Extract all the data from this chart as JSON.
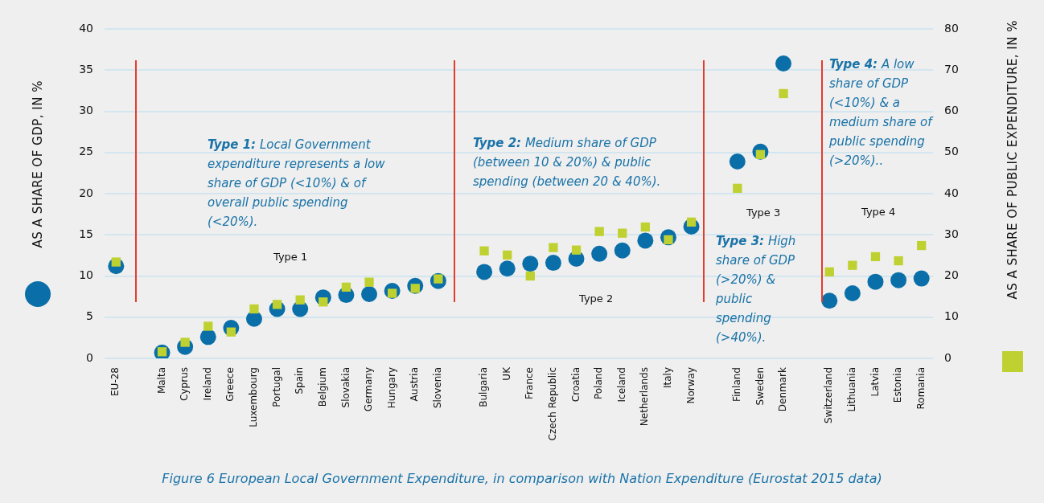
{
  "chart_data": {
    "type": "scatter",
    "categories": [
      "EU-28",
      null,
      "Malta",
      "Cyprus",
      "Ireland",
      "Greece",
      "Luxembourg",
      "Portugal",
      "Spain",
      "Belgium",
      "Slovakia",
      "Germany",
      "Hungary",
      "Austria",
      "Slovenia",
      null,
      "Bulgaria",
      "UK",
      "France",
      "Czech Republic",
      "Croatia",
      "Poland",
      "Iceland",
      "Netherlands",
      "Italy",
      "Norway",
      null,
      "Finland",
      "Sweden",
      "Denmark",
      null,
      "Switzerland",
      "Lithuania",
      "Latvia",
      "Estonia",
      "Romania"
    ],
    "series": [
      {
        "color": "#0a6fa8",
        "marker": "circle",
        "axis": "y",
        "values": [
          11.2,
          null,
          0.7,
          1.4,
          2.6,
          3.7,
          4.8,
          6.0,
          6.0,
          7.4,
          7.7,
          7.8,
          8.2,
          8.8,
          9.4,
          null,
          10.5,
          10.9,
          11.5,
          11.6,
          12.1,
          12.7,
          13.1,
          14.3,
          14.7,
          16.0,
          null,
          23.9,
          25.1,
          35.8,
          null,
          7.0,
          7.9,
          9.3,
          9.5,
          9.7
        ]
      },
      {
        "color": "#bfd131",
        "marker": "square",
        "axis": "y2",
        "values": [
          23.4,
          null,
          1.6,
          3.9,
          7.8,
          6.4,
          12.0,
          13.1,
          14.2,
          13.7,
          17.3,
          18.5,
          15.8,
          17.0,
          19.3,
          null,
          26.1,
          25.1,
          20.0,
          26.9,
          26.3,
          30.8,
          30.4,
          31.9,
          28.8,
          33.1,
          null,
          41.3,
          49.5,
          64.3,
          null,
          21.0,
          22.6,
          24.7,
          23.7,
          27.4
        ]
      }
    ],
    "ylabel": "AS A SHARE OF GDP, IN %",
    "y2label": "AS A SHARE OF PUBLIC EXPENDITURE, IN %",
    "ylim": [
      0,
      40
    ],
    "yticks": [
      0,
      5,
      10,
      15,
      20,
      25,
      30,
      35,
      40
    ],
    "y2lim": [
      0,
      80
    ],
    "y2ticks": [
      0,
      10,
      20,
      30,
      40,
      50,
      60,
      70,
      80
    ],
    "grid": "y",
    "legend": false,
    "annotations": [
      "Type 1: Local Government expenditure represents a low share of GDP (<10%) & of overall public spending (<20%).",
      "Type 1",
      "Type 2: Medium share of GDP (between 10 & 20%) & public spending (between 20 & 40%).",
      "Type 2",
      "Type 3",
      "Type 3: High share of GDP (>20%) & public spending (>40%).",
      "Type 4",
      "Type 4: A low share of GDP (<10%) & a medium share of public spending (>20%)..",
      "Figure 6 European Local Government Expenditure, in comparison with Nation Expenditure (Eurostat 2015 data)"
    ]
  }
}
